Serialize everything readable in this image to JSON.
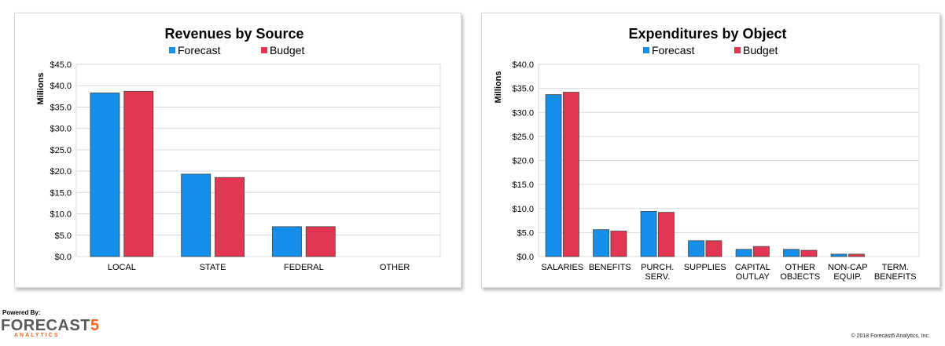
{
  "colors": {
    "forecast": "#1590ea",
    "budget": "#e23652",
    "grid": "#d9d9d9",
    "accent": "#f26522"
  },
  "chart_data": [
    {
      "type": "bar",
      "title": "Revenues by Source",
      "ylabel": "Millions",
      "ylim": [
        0,
        45
      ],
      "yticks": [
        "$0.0",
        "$5.0",
        "$10.0",
        "$15.0",
        "$20.0",
        "$25.0",
        "$30.0",
        "$35.0",
        "$40.0",
        "$45.0"
      ],
      "categories": [
        [
          "LOCAL"
        ],
        [
          "STATE"
        ],
        [
          "FEDERAL"
        ],
        [
          "OTHER"
        ]
      ],
      "series": [
        {
          "name": "Forecast",
          "values": [
            38.3,
            19.3,
            7.0,
            0
          ]
        },
        {
          "name": "Budget",
          "values": [
            38.7,
            18.5,
            7.0,
            0
          ]
        }
      ],
      "grid": true,
      "legend": "top-center"
    },
    {
      "type": "bar",
      "title": "Expenditures by Object",
      "ylabel": "Millions",
      "ylim": [
        0,
        40
      ],
      "yticks": [
        "$0.0",
        "$5.0",
        "$10.0",
        "$15.0",
        "$20.0",
        "$25.0",
        "$30.0",
        "$35.0",
        "$40.0"
      ],
      "categories": [
        [
          "SALARIES"
        ],
        [
          "BENEFITS"
        ],
        [
          "PURCH.",
          "SERV."
        ],
        [
          "SUPPLIES"
        ],
        [
          "CAPITAL",
          "OUTLAY"
        ],
        [
          "OTHER",
          "OBJECTS"
        ],
        [
          "NON-CAP",
          "EQUIP."
        ],
        [
          "TERM.",
          "BENEFITS"
        ]
      ],
      "series": [
        {
          "name": "Forecast",
          "values": [
            33.7,
            5.6,
            9.4,
            3.3,
            1.5,
            1.5,
            0.5,
            0
          ]
        },
        {
          "name": "Budget",
          "values": [
            34.2,
            5.3,
            9.2,
            3.3,
            2.1,
            1.3,
            0.5,
            0
          ]
        }
      ],
      "grid": true,
      "legend": "top-center"
    }
  ],
  "footer": {
    "powered_by": "Powered By:",
    "logo_main": "FORECAST",
    "logo_five": "5",
    "logo_sub": "ANALYTICS",
    "copyright": "© 2018 Forecast5 Analytics, Inc."
  }
}
